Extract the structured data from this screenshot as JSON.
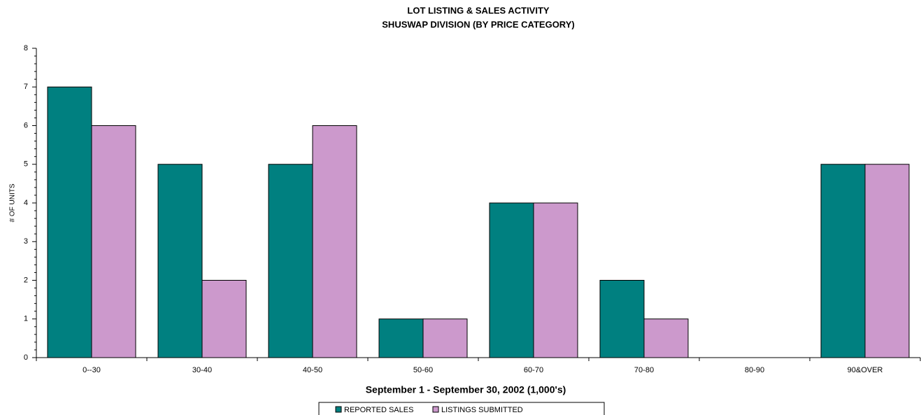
{
  "chart_data": {
    "type": "bar",
    "title": "LOT LISTING & SALES ACTIVITY",
    "subtitle": "SHUSWAP DIVISION (BY PRICE CATEGORY)",
    "x_label": "September 1 - September 30, 2002 (1,000's)",
    "y_label": "# OF UNITS",
    "categories": [
      "0--30",
      "30-40",
      "40-50",
      "50-60",
      "60-70",
      "70-80",
      "80-90",
      "90&OVER"
    ],
    "series": [
      {
        "name": "REPORTED SALES",
        "color": "#008080",
        "values": [
          7,
          5,
          5,
          1,
          4,
          2,
          0,
          5
        ]
      },
      {
        "name": "LISTINGS SUBMITTED",
        "color": "#cc99cc",
        "values": [
          6,
          2,
          6,
          1,
          4,
          1,
          0,
          5
        ]
      }
    ],
    "ylim": [
      0,
      8
    ],
    "yticks": [
      0,
      1,
      2,
      3,
      4,
      5,
      6,
      7,
      8
    ],
    "grid": false,
    "legend": "bottom"
  }
}
